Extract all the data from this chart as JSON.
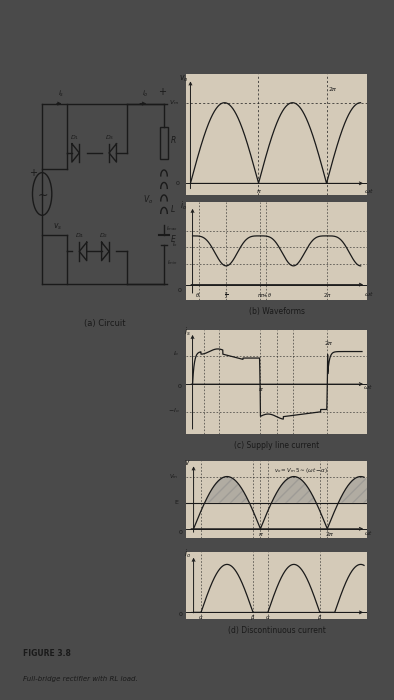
{
  "bg_outer": "#555555",
  "bg_page": "#d8cfc0",
  "fig_title": "FIGURE 3.8",
  "fig_caption": "Full-bridge rectifier with RL load.",
  "panel_b_title": "(b) Waveforms",
  "panel_c_title": "(c) Supply line current",
  "panel_d_title": "(d) Discontinuous current",
  "panel_a_title": "(a) Circuit"
}
